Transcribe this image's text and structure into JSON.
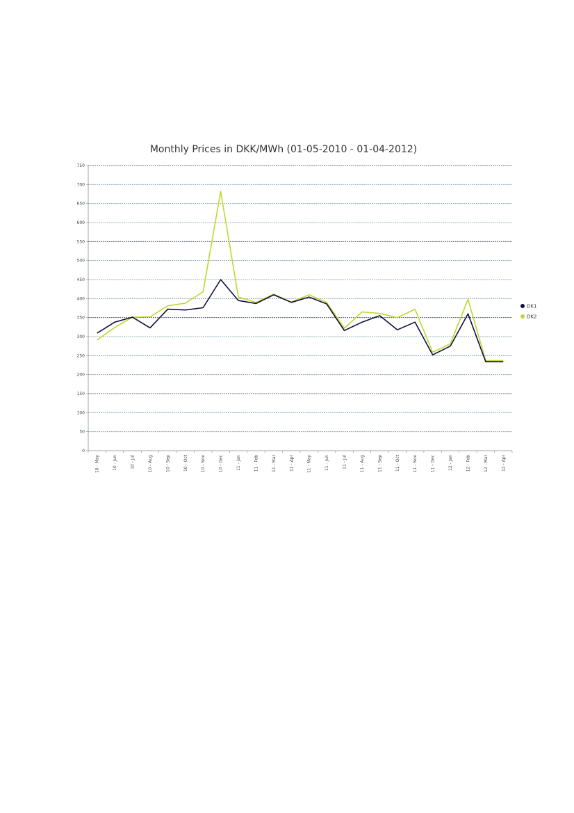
{
  "chart_data": {
    "type": "line",
    "title": "Monthly Prices in DKK/MWh (01-05-2010 - 01-04-2012)",
    "xlabel": "",
    "ylabel": "",
    "ylim": [
      0,
      750
    ],
    "yticks": [
      0,
      50,
      100,
      150,
      200,
      250,
      300,
      350,
      400,
      450,
      500,
      550,
      600,
      650,
      700,
      750
    ],
    "grid": true,
    "legend_position": "right",
    "categories": [
      "10 - May",
      "10 - Jun",
      "10 - Jul",
      "10 - Aug",
      "10 - Sep",
      "10 - Oct",
      "10 - Nov",
      "10 - Dec",
      "11 - Jan",
      "11 - Feb",
      "11 - Mar",
      "11 - Apr",
      "11 - May",
      "11 - Jun",
      "11 - Jul",
      "11 - Aug",
      "11 - Sep",
      "11 - Oct",
      "11 - Nov",
      "11 - Dec",
      "12 - Jan",
      "12 - Feb",
      "12 - Mar",
      "12 - Apr"
    ],
    "series": [
      {
        "name": "DK1",
        "color": "#0b0f3b",
        "values": [
          309,
          338,
          351,
          323,
          372,
          370,
          376,
          450,
          395,
          387,
          410,
          390,
          404,
          386,
          316,
          338,
          355,
          318,
          338,
          252,
          275,
          360,
          234,
          234
        ]
      },
      {
        "name": "DK2",
        "color": "#c2d62e",
        "values": [
          291,
          324,
          351,
          352,
          381,
          388,
          418,
          682,
          404,
          390,
          412,
          391,
          410,
          390,
          322,
          365,
          361,
          350,
          372,
          259,
          281,
          398,
          237,
          237
        ]
      }
    ]
  }
}
